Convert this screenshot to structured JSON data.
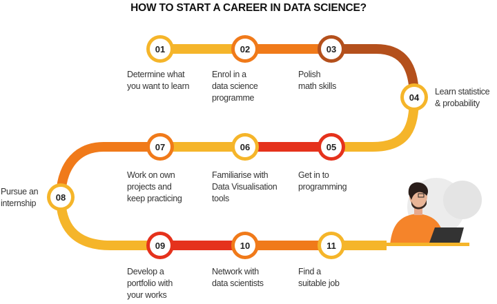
{
  "title": "HOW TO START A CAREER IN DATA SCIENCE?",
  "colors": {
    "yellow": "#f5b52a",
    "orange": "#f07a1a",
    "brown": "#b4501c",
    "red": "#e5321c"
  },
  "steps": [
    {
      "num": "01",
      "text": "Determine what\nyou want to learn",
      "ring": "yellow"
    },
    {
      "num": "02",
      "text": "Enrol in a\ndata science\nprogramme",
      "ring": "orange"
    },
    {
      "num": "03",
      "text": "Polish\nmath skills",
      "ring": "brown"
    },
    {
      "num": "04",
      "text": "Learn statistice\n& probability",
      "ring": "yellow"
    },
    {
      "num": "05",
      "text": "Get in to\nprogramming",
      "ring": "red"
    },
    {
      "num": "06",
      "text": "Familiarise with\nData Visualisation\ntools",
      "ring": "yellow"
    },
    {
      "num": "07",
      "text": "Work on own\nprojects and\nkeep practicing",
      "ring": "orange"
    },
    {
      "num": "08",
      "text": "Pursue an\ninternship",
      "ring": "yellow"
    },
    {
      "num": "09",
      "text": "Develop a\nportfolio with\nyour works",
      "ring": "red"
    },
    {
      "num": "10",
      "text": "Network with\ndata scientists",
      "ring": "orange"
    },
    {
      "num": "11",
      "text": "Find a\nsuitable job",
      "ring": "yellow"
    }
  ]
}
